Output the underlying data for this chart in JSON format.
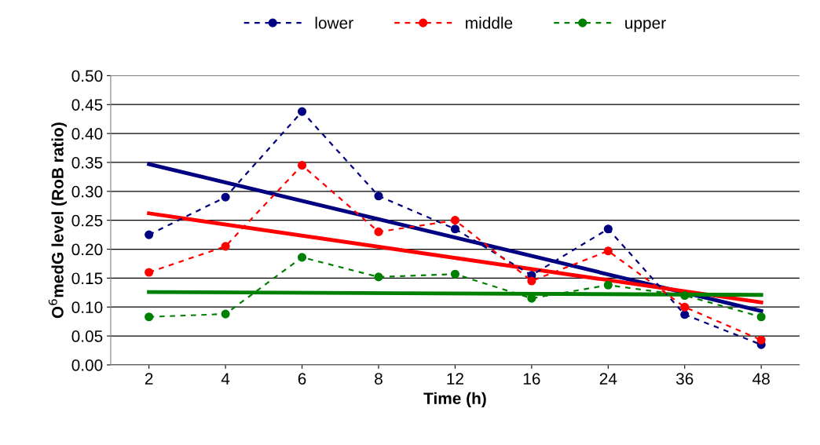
{
  "chart_data": {
    "type": "line",
    "xlabel": "Time (h)",
    "ylabel": "O$^{6}$medG level (RoB ratio)",
    "categories": [
      "2",
      "4",
      "6",
      "8",
      "12",
      "16",
      "24",
      "36",
      "48"
    ],
    "series": [
      {
        "name": "lower",
        "color": "#000080",
        "line_style": "dashed",
        "marker": "circle",
        "values": [
          0.225,
          0.29,
          0.438,
          0.292,
          0.235,
          0.155,
          0.235,
          0.087,
          0.035
        ]
      },
      {
        "name": "middle",
        "color": "#ff0000",
        "line_style": "dashed",
        "marker": "circle",
        "values": [
          0.16,
          0.205,
          0.345,
          0.23,
          0.25,
          0.145,
          0.197,
          0.1,
          0.043
        ]
      },
      {
        "name": "upper",
        "color": "#008000",
        "line_style": "dashed",
        "marker": "circle",
        "values": [
          0.083,
          0.088,
          0.186,
          0.152,
          0.157,
          0.115,
          0.138,
          0.12,
          0.083
        ]
      },
      {
        "color": "#000080",
        "line_style": "solid",
        "marker": "none",
        "x": [
          "2",
          "48"
        ],
        "values": [
          0.347,
          0.093
        ]
      },
      {
        "color": "#ff0000",
        "line_style": "solid",
        "marker": "none",
        "x": [
          "2",
          "48"
        ],
        "values": [
          0.262,
          0.108
        ]
      },
      {
        "color": "#008000",
        "line_style": "solid",
        "marker": "none",
        "x": [
          "2",
          "48"
        ],
        "values": [
          0.126,
          0.121
        ]
      }
    ],
    "ylim": [
      0,
      0.5
    ],
    "yticks": [
      {
        "value": 0,
        "label": "0.00"
      },
      {
        "value": 0.05,
        "label": "0.05"
      },
      {
        "value": 0.1,
        "label": "0.10"
      },
      {
        "value": 0.15,
        "label": "0.15"
      },
      {
        "value": 0.2,
        "label": "0.20"
      },
      {
        "value": 0.25,
        "label": "0.25"
      },
      {
        "value": 0.3,
        "label": "0.30"
      },
      {
        "value": 0.35,
        "label": "0.35"
      },
      {
        "value": 0.4,
        "label": "0.40"
      },
      {
        "value": 0.45,
        "label": "0.45"
      },
      {
        "value": 0.5,
        "label": "0.50"
      }
    ],
    "grid": "y",
    "legend": "top"
  }
}
